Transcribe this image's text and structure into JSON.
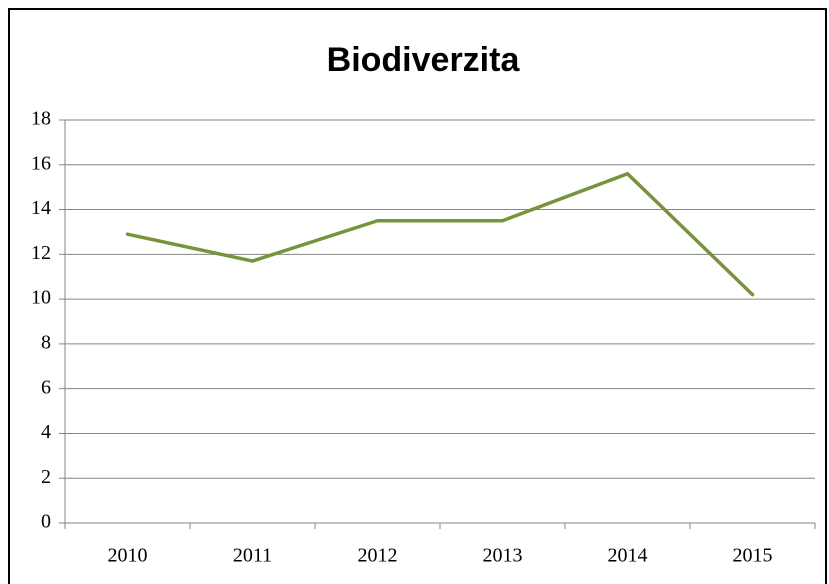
{
  "chart_data": {
    "type": "line",
    "title": "Biodiverzita",
    "categories": [
      "2010",
      "2011",
      "2012",
      "2013",
      "2014",
      "2015"
    ],
    "series": [
      {
        "name": "Biodiverzita",
        "color": "#77933c",
        "values": [
          12.9,
          11.7,
          13.5,
          13.5,
          15.6,
          10.2
        ]
      }
    ],
    "ylim": [
      0,
      18
    ],
    "yticks": [
      0,
      2,
      4,
      6,
      8,
      10,
      12,
      14,
      16,
      18
    ],
    "grid": true
  }
}
